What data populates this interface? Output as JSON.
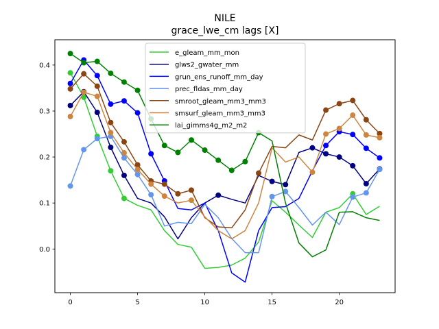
{
  "chart_data": {
    "type": "line",
    "title": "NILE",
    "subtitle": "grace_lwe_cm lags [X]",
    "xlabel": "",
    "ylabel": "",
    "xlim": [
      -1.15,
      24.15
    ],
    "ylim": [
      -0.095,
      0.455
    ],
    "xticks": [
      0,
      5,
      10,
      15,
      20
    ],
    "yticks": [
      0.0,
      0.1,
      0.2,
      0.3,
      0.4
    ],
    "ytick_labels": [
      "0.0",
      "0.1",
      "0.2",
      "0.3",
      "0.4"
    ],
    "legend_position": "top-center",
    "grid": false,
    "x": [
      0,
      1,
      2,
      3,
      4,
      5,
      6,
      7,
      8,
      9,
      10,
      11,
      12,
      13,
      14,
      15,
      16,
      17,
      18,
      19,
      20,
      21,
      22,
      23
    ],
    "series": [
      {
        "name": "e_gleam_mm_mon",
        "color": "#32cd32",
        "values": [
          0.383,
          0.33,
          0.245,
          0.17,
          0.11,
          0.095,
          0.085,
          0.04,
          0.01,
          0.004,
          -0.042,
          -0.04,
          -0.035,
          -0.02,
          0.015,
          0.105,
          0.08,
          0.052,
          0.025,
          0.08,
          0.09,
          0.12,
          0.075,
          0.093
        ],
        "markers": [
          0,
          1,
          2,
          3,
          4,
          21
        ]
      },
      {
        "name": "glws2_gwater_mm",
        "color": "#000080",
        "values": [
          0.312,
          0.342,
          0.297,
          0.221,
          0.16,
          0.11,
          0.1,
          0.07,
          0.022,
          0.068,
          0.1,
          0.117,
          0.108,
          0.1,
          0.16,
          0.147,
          0.14,
          0.21,
          0.22,
          0.207,
          0.2,
          0.181,
          0.142,
          0.174
        ],
        "markers": [
          0,
          1,
          2,
          3,
          4,
          11,
          15,
          16,
          18,
          19,
          20,
          21,
          22,
          23
        ]
      },
      {
        "name": "grun_ens_runoff_mm_day",
        "color": "#0000ff",
        "values": [
          0.36,
          0.411,
          0.377,
          0.315,
          0.322,
          0.296,
          0.207,
          0.148,
          0.088,
          0.085,
          0.1,
          0.04,
          -0.052,
          -0.072,
          0.04,
          0.09,
          0.092,
          0.11,
          0.17,
          0.225,
          0.255,
          0.249,
          0.219,
          0.198
        ],
        "markers": [
          0,
          1,
          2,
          3,
          4,
          5,
          6,
          7,
          19,
          20,
          21,
          22,
          23
        ]
      },
      {
        "name": "prec_fldas_mm_day",
        "color": "#6495ed",
        "values": [
          0.137,
          0.216,
          0.24,
          0.245,
          0.198,
          0.162,
          0.118,
          0.05,
          0.058,
          0.055,
          0.097,
          0.068,
          0.023,
          -0.008,
          -0.008,
          0.114,
          0.125,
          0.09,
          0.052,
          0.08,
          0.053,
          0.113,
          0.122,
          0.173
        ],
        "markers": [
          0,
          1,
          2,
          3,
          4,
          5,
          6,
          15,
          16,
          21,
          22,
          23
        ]
      },
      {
        "name": "smroot_gleam_mm3_mm3",
        "color": "#8b4513",
        "values": [
          0.348,
          0.381,
          0.354,
          0.275,
          0.233,
          0.183,
          0.148,
          0.141,
          0.12,
          0.128,
          0.068,
          0.048,
          0.046,
          0.085,
          0.165,
          0.223,
          0.22,
          0.248,
          0.237,
          0.302,
          0.316,
          0.323,
          0.281,
          0.251
        ],
        "markers": [
          0,
          1,
          2,
          3,
          4,
          5,
          6,
          7,
          8,
          9,
          14,
          19,
          20,
          21,
          22,
          23
        ]
      },
      {
        "name": "smsurf_gleam_mm3_mm3",
        "color": "#cd853f",
        "values": [
          0.288,
          0.341,
          0.332,
          0.253,
          0.209,
          0.173,
          0.141,
          0.115,
          0.1,
          0.106,
          0.07,
          0.04,
          0.022,
          0.04,
          0.1,
          0.22,
          0.189,
          0.2,
          0.167,
          0.25,
          0.262,
          0.291,
          0.248,
          0.242
        ],
        "markers": [
          0,
          1,
          2,
          3,
          4,
          5,
          6,
          7,
          9,
          18,
          19,
          20,
          21,
          22,
          23
        ]
      },
      {
        "name": "lai_gimms4g_m2_m2",
        "color": "#008000",
        "values": [
          0.425,
          0.405,
          0.408,
          0.382,
          0.363,
          0.345,
          0.283,
          0.225,
          0.21,
          0.237,
          0.215,
          0.193,
          0.171,
          0.19,
          0.253,
          0.235,
          0.1,
          0.013,
          -0.017,
          -0.002,
          0.08,
          0.081,
          0.068,
          0.062
        ],
        "markers": [
          0,
          1,
          2,
          3,
          4,
          5,
          6,
          7,
          8,
          9,
          10,
          11,
          12,
          13,
          14
        ]
      }
    ]
  }
}
